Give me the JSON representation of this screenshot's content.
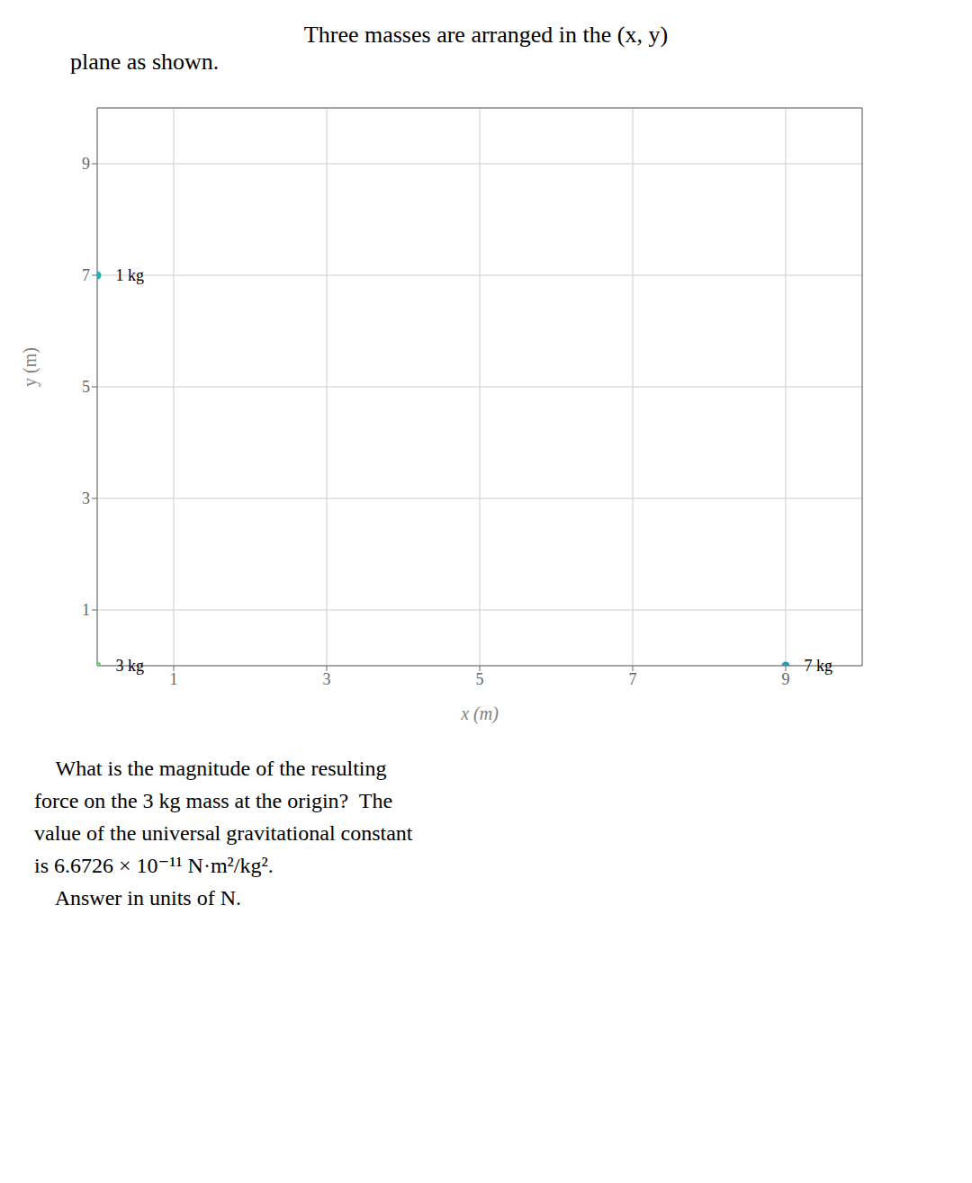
{
  "chart_data": {
    "type": "scatter",
    "title": "Three masses are arranged in the (x, y)",
    "subtitle": "plane as shown.",
    "xlabel": "x (m)",
    "ylabel": "y (m)",
    "x": [
      0,
      0,
      9
    ],
    "values": [
      0,
      7,
      0
    ],
    "point_labels": [
      "3 kg",
      "1 kg",
      "7 kg"
    ],
    "colors": [
      "#70d080",
      "#20b0b0",
      "#20a0b0"
    ],
    "xlim": [
      0,
      10
    ],
    "ylim": [
      0,
      10
    ],
    "xticks": [
      1,
      3,
      5,
      7,
      9
    ],
    "yticks": [
      1,
      3,
      5,
      7,
      9
    ],
    "grid": true,
    "annotations": [
      "    What is the magnitude of the resulting",
      "force on the 3 kg mass at the origin?  The",
      "value of the universal gravitational constant",
      "is 6.6726 × 10⁻¹¹ N·m²/kg².",
      "    Answer in units of N."
    ]
  }
}
